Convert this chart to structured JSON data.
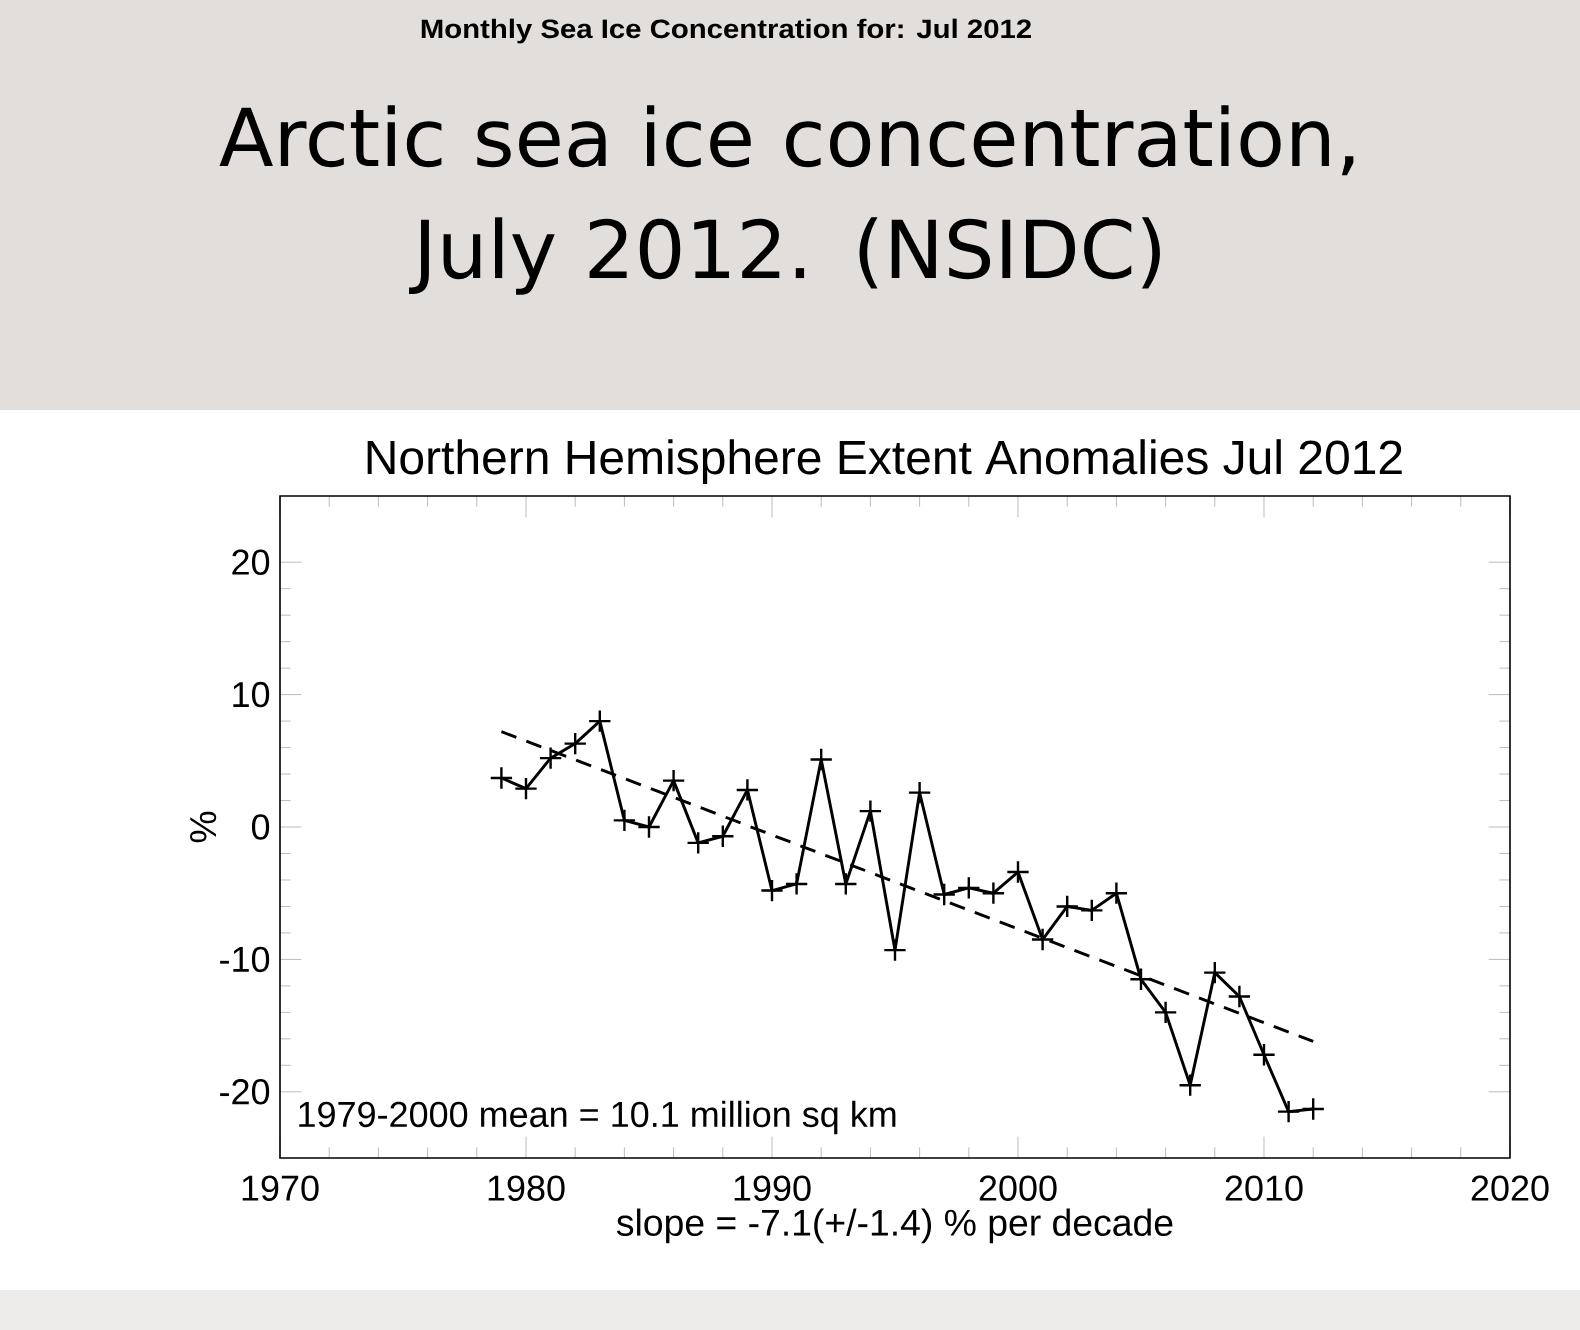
{
  "chart_data": {
    "type": "line",
    "title": "Arctic sea ice concentration, July 2012. (NSIDC)",
    "subtitle": "Northern Hemisphere Extent Anomalies Jul 2012",
    "xlabel": "slope =  -7.1(+/-1.4) % per decade",
    "ylabel": "%",
    "annotations": [
      "Monthly Sea Ice Concentration for: Jul 2012",
      "1979-2000 mean =  10.1 million sq km"
    ],
    "xlim": [
      1970,
      2020
    ],
    "xticks": [
      1970,
      1980,
      1990,
      2000,
      2010,
      2020
    ],
    "ylim": [
      -25,
      25
    ],
    "yticks": [
      -20,
      -10,
      0,
      10,
      20
    ],
    "series": [
      {
        "color": "#000000",
        "marker": "cross",
        "line_style": "solid",
        "x": [
          1979,
          1980,
          1981,
          1982,
          1983,
          1984,
          1985,
          1986,
          1987,
          1988,
          1989,
          1990,
          1991,
          1992,
          1993,
          1994,
          1995,
          1996,
          1997,
          1998,
          1999,
          2000,
          2001,
          2002,
          2003,
          2004,
          2005,
          2006,
          2007,
          2008,
          2009,
          2010,
          2011,
          2012
        ],
        "values": [
          3.7,
          2.9,
          5.2,
          6.3,
          8.0,
          0.5,
          0.0,
          3.5,
          -1.2,
          -0.7,
          2.8,
          -4.8,
          -4.3,
          5.1,
          -4.3,
          1.2,
          -9.3,
          2.6,
          -5.1,
          -4.6,
          -5.0,
          -3.4,
          -8.5,
          -6.0,
          -6.3,
          -5.0,
          -11.5,
          -14.0,
          -19.5,
          -11.0,
          -12.8,
          -17.2,
          -21.5,
          -21.3
        ]
      },
      {
        "color": "#000000",
        "marker": "none",
        "line_style": "dashed",
        "x": [
          1979,
          2012
        ],
        "values": [
          7.2,
          -16.2
        ]
      }
    ]
  }
}
